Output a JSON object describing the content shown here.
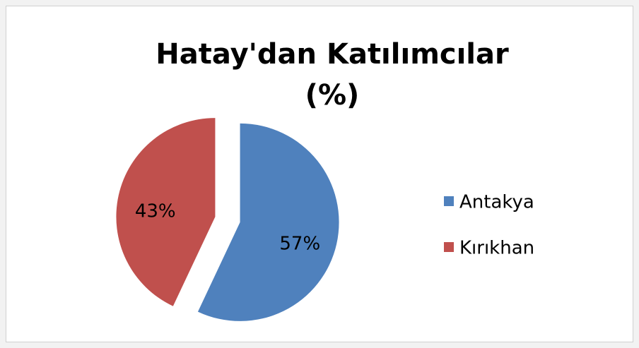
{
  "chart_data": {
    "type": "pie",
    "title": "Hatay'dan Katılımcılar (%)",
    "categories": [
      "Antakya",
      "Kırıkhan"
    ],
    "values": [
      57,
      43
    ],
    "value_labels": [
      "57%",
      "43%"
    ],
    "colors": [
      "#4f81bd",
      "#c0504d"
    ],
    "legend": "right"
  }
}
